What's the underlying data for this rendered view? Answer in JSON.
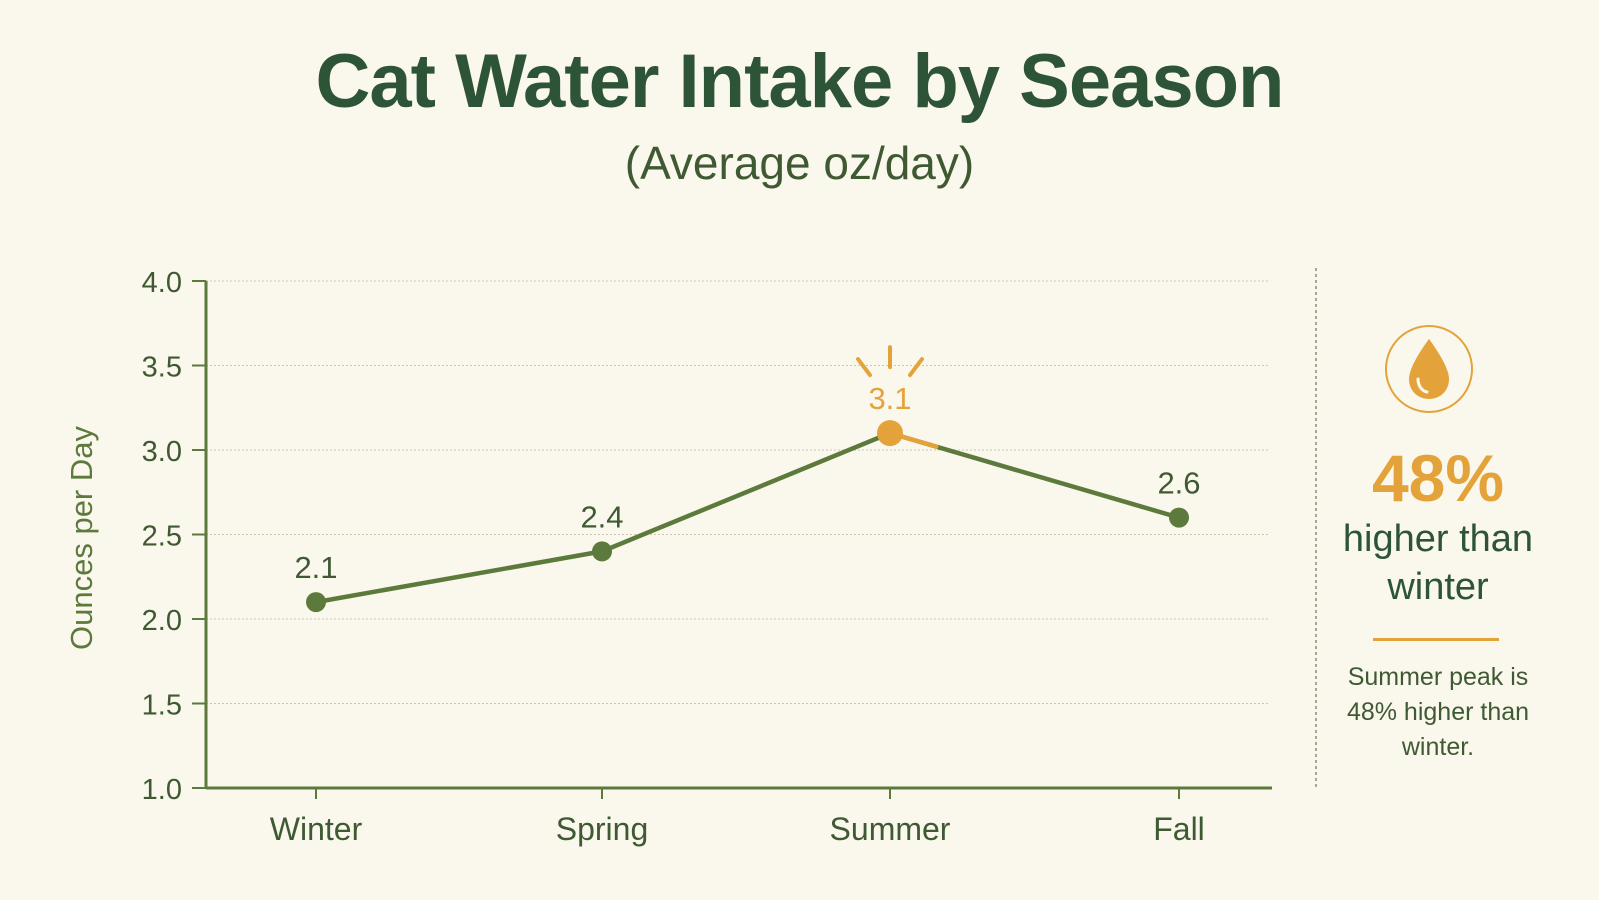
{
  "header": {
    "title": "Cat Water Intake by Season",
    "subtitle": "(Average oz/day)"
  },
  "chart_data": {
    "type": "line",
    "title": "Cat Water Intake by Season",
    "subtitle": "(Average oz/day)",
    "xlabel": "",
    "ylabel": "Ounces per Day",
    "categories": [
      "Winter",
      "Spring",
      "Summer",
      "Fall"
    ],
    "series": [
      {
        "values": [
          2.1,
          2.4,
          3.1,
          2.6
        ]
      }
    ],
    "data_labels": [
      "2.1",
      "2.4",
      "3.1",
      "2.6"
    ],
    "highlight_index": 2,
    "ylim": [
      1.0,
      4.0
    ],
    "yticks": [
      "1.0",
      "1.5",
      "2.0",
      "2.5",
      "3.0",
      "3.5",
      "4.0"
    ],
    "grid": true,
    "colors": {
      "line": "#5b7a3c",
      "highlight": "#e4a33a",
      "text": "#3f5a32",
      "title": "#2e5438",
      "grid": "#c9c6b6",
      "background": "#faf7ec"
    }
  },
  "callout": {
    "icon": "water-drop-icon",
    "percent": "48%",
    "headline_line1": "higher than",
    "headline_line2": "winter",
    "note_line1": "Summer peak is",
    "note_line2": "48% higher than",
    "note_line3": "winter."
  }
}
